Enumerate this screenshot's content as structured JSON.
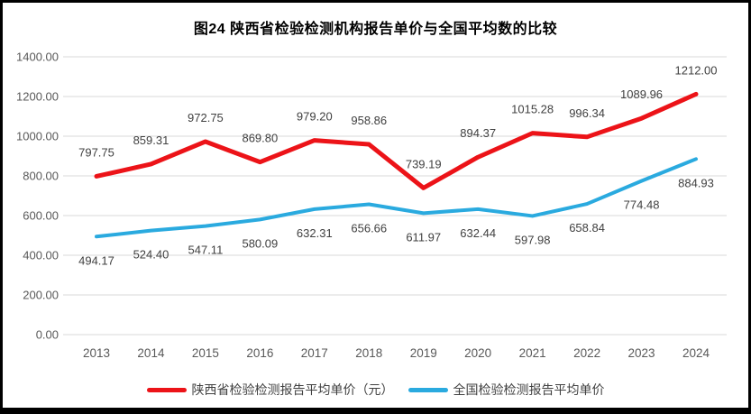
{
  "chart_data": {
    "type": "line",
    "title": "图24 陕西省检验检测机构报告单价与全国平均数的比较",
    "categories": [
      "2013",
      "2014",
      "2015",
      "2016",
      "2017",
      "2018",
      "2019",
      "2020",
      "2021",
      "2022",
      "2023",
      "2024"
    ],
    "series": [
      {
        "name": "陕西省检验检测报告平均单价（元）",
        "color": "#ec1318",
        "values": [
          797.75,
          859.31,
          972.75,
          869.8,
          979.2,
          958.86,
          739.19,
          894.37,
          1015.28,
          996.34,
          1089.96,
          1212.0
        ]
      },
      {
        "name": "全国检验检测报告平均单价",
        "color": "#2aaadf",
        "values": [
          494.17,
          524.4,
          547.11,
          580.09,
          632.31,
          656.66,
          611.97,
          632.44,
          597.98,
          658.84,
          774.48,
          884.93
        ]
      }
    ],
    "ylim": [
      0,
      1400
    ],
    "ytick_step": 200,
    "ytick_labels": [
      "0.00",
      "200.00",
      "400.00",
      "600.00",
      "800.00",
      "1000.00",
      "1200.00",
      "1400.00"
    ],
    "grid": true,
    "data_labels": true,
    "label_decimals": 2,
    "legend_position": "bottom",
    "colors": {
      "grid": "#d9d9d9",
      "axis_text": "#595959",
      "label_text": "#404040",
      "title_text": "#000000",
      "frame_border": "#000000"
    }
  }
}
